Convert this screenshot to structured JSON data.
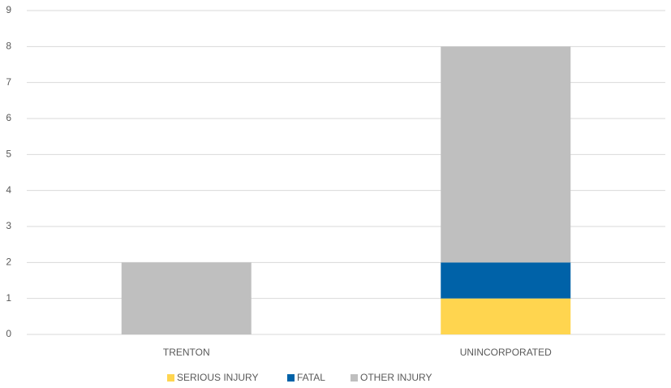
{
  "chart_data": {
    "type": "stacked-bar",
    "categories": [
      "TRENTON",
      "UNINCORPORATED"
    ],
    "series": [
      {
        "name": "SERIOUS INJURY",
        "color": "#ffd54f",
        "values": [
          0,
          1
        ]
      },
      {
        "name": "FATAL",
        "color": "#0062a8",
        "values": [
          0,
          1
        ]
      },
      {
        "name": "OTHER INJURY",
        "color": "#bfbfbf",
        "values": [
          2,
          6
        ]
      }
    ],
    "ylim": [
      0,
      9
    ],
    "yticks": [
      0,
      1,
      2,
      3,
      4,
      5,
      6,
      7,
      8,
      9
    ],
    "grid": true,
    "legend": "bottom"
  }
}
